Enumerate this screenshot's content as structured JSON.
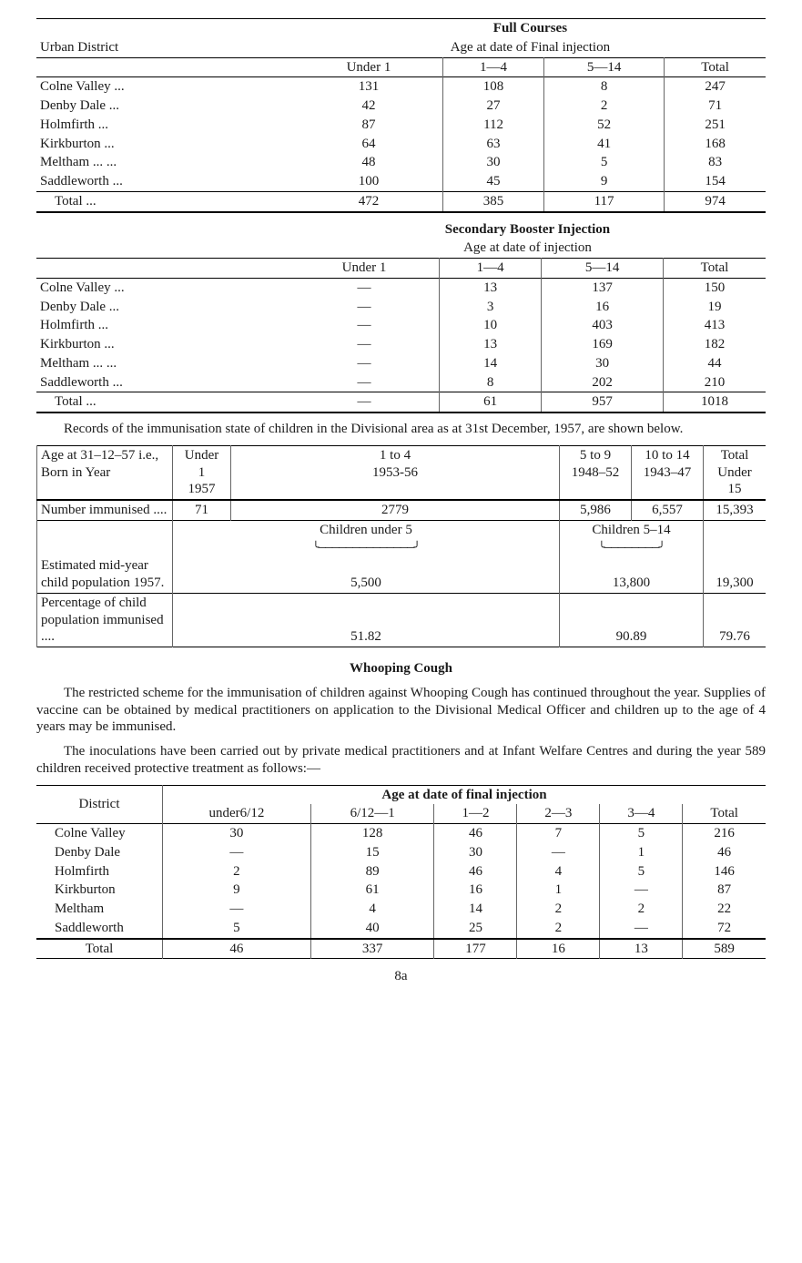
{
  "table1": {
    "title_left": "Urban District",
    "title_line1": "Full Courses",
    "title_line2": "Age at date of Final injection",
    "cols": [
      "Under 1",
      "1—4",
      "5—14",
      "Total"
    ],
    "rows": [
      {
        "d": "Colne Valley   ...",
        "v": [
          "131",
          "108",
          "8",
          "247"
        ]
      },
      {
        "d": "Denby Dale    ...",
        "v": [
          "42",
          "27",
          "2",
          "71"
        ]
      },
      {
        "d": "Holmfirth          ...",
        "v": [
          "87",
          "112",
          "52",
          "251"
        ]
      },
      {
        "d": "Kirkburton      ...",
        "v": [
          "64",
          "63",
          "41",
          "168"
        ]
      },
      {
        "d": "Meltham   ...   ...",
        "v": [
          "48",
          "30",
          "5",
          "83"
        ]
      },
      {
        "d": "Saddleworth    ...",
        "v": [
          "100",
          "45",
          "9",
          "154"
        ]
      }
    ],
    "total": {
      "d": "Total              ...",
      "v": [
        "472",
        "385",
        "117",
        "974"
      ]
    }
  },
  "table2": {
    "title_line1": "Secondary Booster Injection",
    "title_line2": "Age at date of injection",
    "cols": [
      "Under 1",
      "1—4",
      "5—14",
      "Total"
    ],
    "rows": [
      {
        "d": "Colne Valley   ...",
        "v": [
          "—",
          "13",
          "137",
          "150"
        ]
      },
      {
        "d": "Denby Dale    ...",
        "v": [
          "—",
          "3",
          "16",
          "19"
        ]
      },
      {
        "d": "Holmfirth          ...",
        "v": [
          "—",
          "10",
          "403",
          "413"
        ]
      },
      {
        "d": "Kirkburton      ...",
        "v": [
          "—",
          "13",
          "169",
          "182"
        ]
      },
      {
        "d": "Meltham   ...   ...",
        "v": [
          "—",
          "14",
          "30",
          "44"
        ]
      },
      {
        "d": "Saddleworth    ...",
        "v": [
          "—",
          "8",
          "202",
          "210"
        ]
      }
    ],
    "total": {
      "d": "Total              ...",
      "v": [
        "—",
        "61",
        "957",
        "1018"
      ]
    }
  },
  "para_records": "Records of the immunisation state of children in the Divisional area as at 31st December, 1957, are shown below.",
  "table3": {
    "h1": "Age at 31–12–57 i.e., Born in Year",
    "h2a": "Under",
    "h2b": "1",
    "h2c": "1957",
    "h3a": "1 to 4",
    "h3b": "1953-56",
    "h4a": "5 to 9",
    "h4b": "1948–52",
    "h5a": "10 to 14",
    "h5b": "1943–47",
    "h6a": "Total",
    "h6b": "Under",
    "h6c": "15",
    "r1_label": "Number immunised     ....",
    "r1": [
      "71",
      "2779",
      "5,986",
      "6,557",
      "15,393"
    ],
    "under5_label": "Children under 5",
    "five14_label": "Children 5–14",
    "r2_label": "Estimated mid-year child population 1957.",
    "r2": [
      "5,500",
      "13,800",
      "19,300"
    ],
    "r3_label": "Percentage of child population immunised      ....",
    "r3": [
      "51.82",
      "90.89",
      "79.76"
    ]
  },
  "whooping_title": "Whooping Cough",
  "whooping_p1": "The restricted scheme for the immunisation of children against Whooping Cough has continued throughout the year. Supplies of vaccine can be obtained by medical practitioners on application to the Divisional Medical Officer and children up to the age of 4 years may be immunised.",
  "whooping_p2": "The inoculations have been carried out by private medical practitioners and at Infant Welfare Centres and during the year 589 children received protective treatment as follows:—",
  "table4": {
    "left_title": "District",
    "title": "Age at date of final injection",
    "cols": [
      "under6/12",
      "6/12—1",
      "1—2",
      "2—3",
      "3—4",
      "Total"
    ],
    "rows": [
      {
        "d": "Colne Valley",
        "v": [
          "30",
          "128",
          "46",
          "7",
          "5",
          "216"
        ]
      },
      {
        "d": "Denby Dale",
        "v": [
          "—",
          "15",
          "30",
          "—",
          "1",
          "46"
        ]
      },
      {
        "d": "Holmfirth",
        "v": [
          "2",
          "89",
          "46",
          "4",
          "5",
          "146"
        ]
      },
      {
        "d": "Kirkburton",
        "v": [
          "9",
          "61",
          "16",
          "1",
          "—",
          "87"
        ]
      },
      {
        "d": "Meltham",
        "v": [
          "—",
          "4",
          "14",
          "2",
          "2",
          "22"
        ]
      },
      {
        "d": "Saddleworth",
        "v": [
          "5",
          "40",
          "25",
          "2",
          "—",
          "72"
        ]
      }
    ],
    "total": {
      "d": "Total",
      "v": [
        "46",
        "337",
        "177",
        "16",
        "13",
        "589"
      ]
    }
  },
  "page": "8a"
}
